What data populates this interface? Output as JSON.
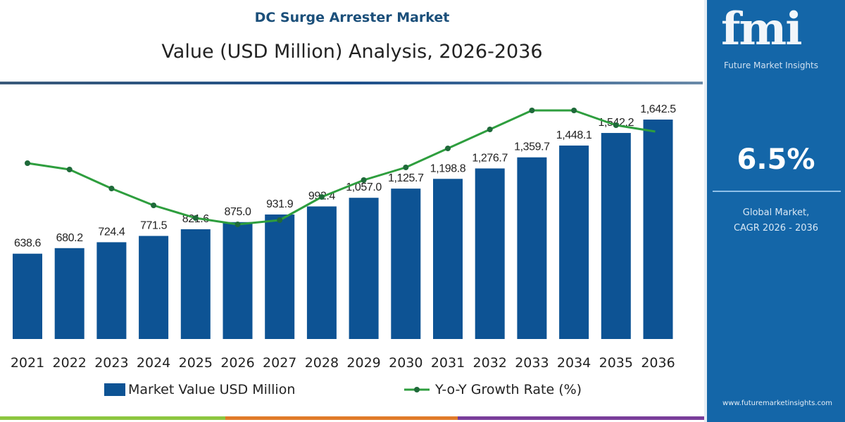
{
  "header": {
    "title": "DC Surge Arrester Market",
    "subtitle": "Value (USD Million) Analysis, 2026-2036"
  },
  "panel": {
    "logo": "fmi",
    "logo_sub": "Future Market Insights",
    "cagr": "6.5%",
    "caption_line1": "Global Market,",
    "caption_line2": "CAGR 2026 - 2036",
    "url": "www.futuremarketinsights.com"
  },
  "colors": {
    "bar": "#0d5394",
    "line": "#2e9e3e",
    "panel": "#1466a8"
  },
  "chart_data": {
    "type": "bar",
    "categories": [
      "2021",
      "2022",
      "2023",
      "2024",
      "2025",
      "2026",
      "2027",
      "2028",
      "2029",
      "2030",
      "2031",
      "2032",
      "2033",
      "2034",
      "2035",
      "2036"
    ],
    "series": [
      {
        "name": "Market Value USD Million",
        "type": "bar",
        "values": [
          638.6,
          680.2,
          724.4,
          771.5,
          821.6,
          875.0,
          931.9,
          992.4,
          1057.0,
          1125.7,
          1198.8,
          1276.7,
          1359.7,
          1448.1,
          1542.2,
          1642.5
        ],
        "labels": [
          "638.6",
          "680.2",
          "724.4",
          "771.5",
          "821.6",
          "875.0",
          "931.9",
          "992.4",
          "1,057.0",
          "1,125.7",
          "1,198.8",
          "1,276.7",
          "1,359.7",
          "1,448.1",
          "1,542.2",
          "1,642.5"
        ]
      },
      {
        "name": "Y-o-Y Growth Rate (%)",
        "type": "line",
        "values": [
          6.56,
          6.53,
          6.44,
          6.36,
          6.3,
          6.27,
          6.29,
          6.4,
          6.48,
          6.54,
          6.63,
          6.72,
          6.81,
          6.81,
          6.74,
          6.71
        ]
      }
    ],
    "ylim": [
      0,
      1642.5
    ],
    "grid": false,
    "legend": "bottom"
  }
}
